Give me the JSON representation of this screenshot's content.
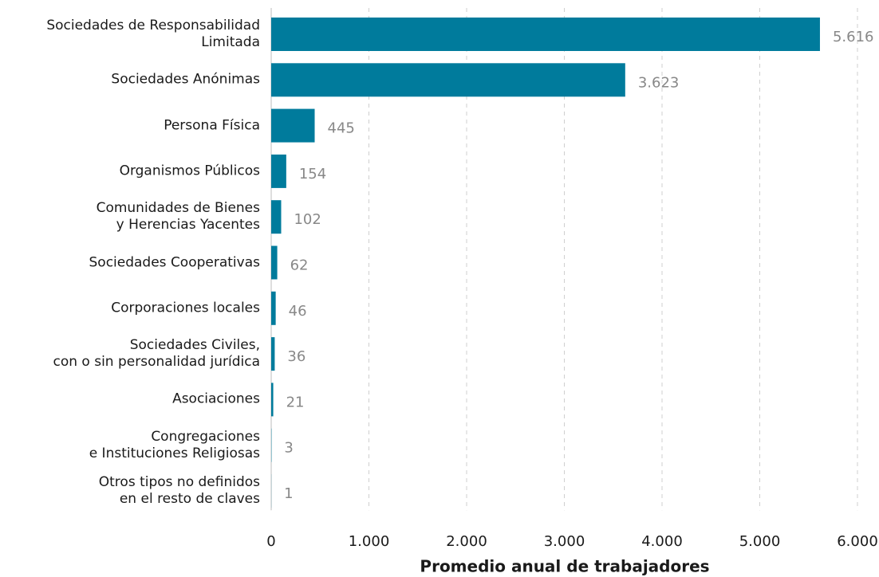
{
  "chart_data": {
    "type": "barh",
    "categories": [
      "Sociedades de Responsabilidad\nLimitada",
      "Sociedades Anónimas",
      "Persona Física",
      "Organismos Públicos",
      "Comunidades de Bienes\ny Herencias Yacentes",
      "Sociedades Cooperativas",
      "Corporaciones locales",
      "Sociedades Civiles,\ncon o sin personalidad jurídica",
      "Asociaciones",
      "Congregaciones\ne Instituciones Religiosas",
      "Otros tipos no definidos\nen el resto de claves"
    ],
    "values": [
      5616,
      3623,
      445,
      154,
      102,
      62,
      46,
      36,
      21,
      3,
      1
    ],
    "value_labels": [
      "5.616",
      "3.623",
      "445",
      "154",
      "102",
      "62",
      "46",
      "36",
      "21",
      "3",
      "1"
    ],
    "color": "#007b9c",
    "xlim": [
      0,
      6000
    ],
    "xticks": [
      0,
      {
        "value": 1000,
        "label": "1.000"
      },
      {
        "value": 2000,
        "label": "2.000"
      },
      {
        "value": 3000,
        "label": "3.000"
      },
      {
        "value": 4000,
        "label": "4.000"
      },
      {
        "value": 5000,
        "label": "5.000"
      },
      {
        "value": 6000,
        "label": "6.000"
      }
    ],
    "xlabel": "Promedio anual de trabajadores",
    "grid": true
  }
}
